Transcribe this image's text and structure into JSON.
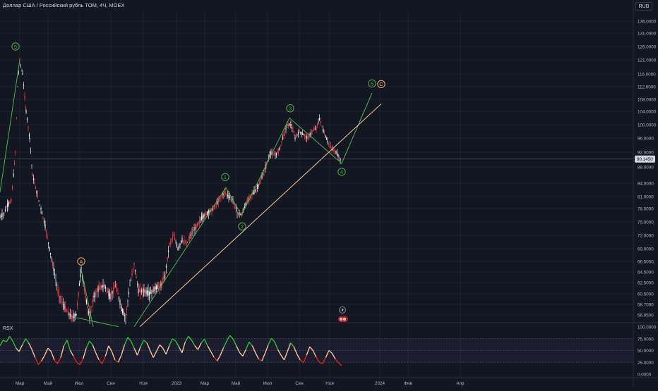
{
  "header": {
    "title": "Доллар США / Российский рубль TOM, 4Ч, MOEX",
    "currency": "RUB"
  },
  "indicator": {
    "name": "RSX"
  },
  "colors": {
    "background": "#131722",
    "candle_up": "#e8e8e8",
    "candle_down": "#f23645",
    "wave_line": "#4caf50",
    "trend_line": "#f5c59b",
    "wave_label_green": "#4caf50",
    "wave_label_orange": "#f5a66b",
    "rsx_high": "#2fbf34",
    "rsx_mid": "#f5c59b",
    "rsx_low": "#e02020",
    "axis_text": "#b2b5be",
    "price_badge_bg": "#d1d4dc"
  },
  "chart_data": {
    "type": "line",
    "price_axis_ticks": [
      "136.0000",
      "131.0000",
      "126.0000",
      "121.0000",
      "116.0000",
      "112.0000",
      "108.0000",
      "104.0000",
      "100.0000",
      "96.0000",
      "92.0000",
      "88.0000",
      "84.0000",
      "81.0000",
      "78.0000",
      "75.0000",
      "72.0000",
      "69.0000",
      "66.5000",
      "64.5000",
      "62.5000",
      "60.5000",
      "58.7000",
      "56.9500"
    ],
    "last_price": "90.1450",
    "rsx_axis_ticks": [
      "100.0000",
      "75.0000",
      "50.0000",
      "25.0000",
      "0.0000"
    ],
    "time_axis_labels": [
      "Мар",
      "Май",
      "Июл",
      "Сен",
      "Ноя",
      "2023",
      "Мар",
      "Май",
      "Июл",
      "Сен",
      "Ноя",
      "2024",
      "Фев",
      "Апр"
    ],
    "price_path": [
      {
        "t": 0,
        "p": 76
      },
      {
        "t": 6,
        "p": 77
      },
      {
        "t": 11,
        "p": 79
      },
      {
        "t": 16,
        "p": 80
      },
      {
        "t": 22,
        "p": 92
      },
      {
        "t": 25,
        "p": 112
      },
      {
        "t": 28,
        "p": 121
      },
      {
        "t": 32,
        "p": 116
      },
      {
        "t": 37,
        "p": 104
      },
      {
        "t": 42,
        "p": 96
      },
      {
        "t": 46,
        "p": 86
      },
      {
        "t": 52,
        "p": 82
      },
      {
        "t": 58,
        "p": 78
      },
      {
        "t": 64,
        "p": 74
      },
      {
        "t": 70,
        "p": 69
      },
      {
        "t": 76,
        "p": 65
      },
      {
        "t": 82,
        "p": 61
      },
      {
        "t": 88,
        "p": 59
      },
      {
        "t": 95,
        "p": 57.5
      },
      {
        "t": 102,
        "p": 56.5
      },
      {
        "t": 108,
        "p": 57
      },
      {
        "t": 115,
        "p": 65
      },
      {
        "t": 121,
        "p": 60
      },
      {
        "t": 127,
        "p": 56.5
      },
      {
        "t": 133,
        "p": 60
      },
      {
        "t": 140,
        "p": 61.5
      },
      {
        "t": 148,
        "p": 62
      },
      {
        "t": 156,
        "p": 60
      },
      {
        "t": 164,
        "p": 62
      },
      {
        "t": 172,
        "p": 58
      },
      {
        "t": 178,
        "p": 56.5
      },
      {
        "t": 184,
        "p": 62
      },
      {
        "t": 190,
        "p": 66
      },
      {
        "t": 196,
        "p": 61
      },
      {
        "t": 204,
        "p": 61
      },
      {
        "t": 212,
        "p": 60.5
      },
      {
        "t": 220,
        "p": 61.5
      },
      {
        "t": 228,
        "p": 62
      },
      {
        "t": 234,
        "p": 64
      },
      {
        "t": 240,
        "p": 70
      },
      {
        "t": 246,
        "p": 72
      },
      {
        "t": 252,
        "p": 69
      },
      {
        "t": 258,
        "p": 71
      },
      {
        "t": 264,
        "p": 70
      },
      {
        "t": 270,
        "p": 72
      },
      {
        "t": 278,
        "p": 74
      },
      {
        "t": 286,
        "p": 76
      },
      {
        "t": 294,
        "p": 77
      },
      {
        "t": 302,
        "p": 78
      },
      {
        "t": 310,
        "p": 80
      },
      {
        "t": 318,
        "p": 82
      },
      {
        "t": 324,
        "p": 81
      },
      {
        "t": 330,
        "p": 80
      },
      {
        "t": 336,
        "p": 77
      },
      {
        "t": 342,
        "p": 76.5
      },
      {
        "t": 348,
        "p": 79
      },
      {
        "t": 354,
        "p": 81
      },
      {
        "t": 360,
        "p": 82
      },
      {
        "t": 368,
        "p": 84
      },
      {
        "t": 376,
        "p": 88
      },
      {
        "t": 384,
        "p": 92
      },
      {
        "t": 390,
        "p": 91
      },
      {
        "t": 396,
        "p": 93
      },
      {
        "t": 402,
        "p": 97
      },
      {
        "t": 407,
        "p": 100
      },
      {
        "t": 412,
        "p": 100
      },
      {
        "t": 418,
        "p": 96
      },
      {
        "t": 424,
        "p": 98
      },
      {
        "t": 430,
        "p": 97
      },
      {
        "t": 436,
        "p": 96
      },
      {
        "t": 442,
        "p": 98
      },
      {
        "t": 448,
        "p": 99
      },
      {
        "t": 453,
        "p": 102
      },
      {
        "t": 458,
        "p": 98
      },
      {
        "t": 464,
        "p": 95
      },
      {
        "t": 470,
        "p": 93
      },
      {
        "t": 476,
        "p": 92
      },
      {
        "t": 482,
        "p": 90
      }
    ],
    "wave_lines": [
      [
        {
          "t": 0,
          "p": 82
        },
        {
          "t": 28,
          "p": 121
        }
      ],
      [
        {
          "t": 108,
          "p": 56.5
        },
        {
          "t": 168,
          "p": 55
        }
      ],
      [
        {
          "t": 115,
          "p": 65
        },
        {
          "t": 132,
          "p": 55
        }
      ],
      [
        {
          "t": 190,
          "p": 55
        },
        {
          "t": 320,
          "p": 83
        },
        {
          "t": 342,
          "p": 76.5
        },
        {
          "t": 410,
          "p": 102
        },
        {
          "t": 484,
          "p": 89
        },
        {
          "t": 527,
          "p": 110
        }
      ]
    ],
    "trend_line": [
      {
        "t": 198,
        "p": 55
      },
      {
        "t": 540,
        "p": 106.5
      }
    ],
    "wave_labels": [
      {
        "label": "5",
        "t": 22,
        "p": 126,
        "color": "green"
      },
      {
        "label": "A",
        "t": 115,
        "p": 66.5,
        "color": "orange"
      },
      {
        "label": "1",
        "t": 319,
        "p": 85.5,
        "color": "green"
      },
      {
        "label": "2",
        "t": 343,
        "p": 74,
        "color": "green"
      },
      {
        "label": "3",
        "t": 411,
        "p": 105,
        "color": "green"
      },
      {
        "label": "4",
        "t": 484,
        "p": 86.8,
        "color": "green"
      },
      {
        "label": "5",
        "t": 527,
        "p": 113,
        "color": "green"
      },
      {
        "label": "C",
        "t": 540,
        "p": 112.8,
        "color": "orange"
      }
    ],
    "rsx_values": [
      60,
      72,
      68,
      80,
      70,
      55,
      48,
      62,
      75,
      66,
      52,
      35,
      20,
      28,
      40,
      55,
      48,
      30,
      22,
      35,
      60,
      72,
      50,
      38,
      25,
      20,
      32,
      55,
      70,
      62,
      45,
      30,
      22,
      38,
      60,
      48,
      30,
      25,
      40,
      62,
      78,
      70,
      55,
      40,
      58,
      72,
      66,
      50,
      35,
      48,
      62,
      55,
      42,
      60,
      75,
      70,
      58,
      45,
      68,
      80,
      72,
      60,
      52,
      66,
      74,
      60,
      48,
      36,
      28,
      40,
      56,
      70,
      82,
      74,
      60,
      46,
      38,
      52,
      68,
      60,
      45,
      32,
      28,
      44,
      62,
      76,
      68,
      52,
      40,
      30,
      48,
      66,
      58,
      42,
      30,
      24,
      40,
      58,
      50,
      36,
      25,
      22,
      35,
      50,
      44,
      32,
      24,
      18
    ]
  }
}
